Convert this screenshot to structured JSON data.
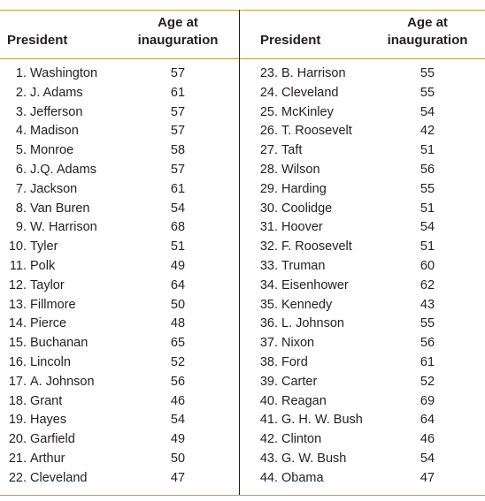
{
  "headers": {
    "president": "President",
    "age_line1": "Age at",
    "age_line2": "inauguration"
  },
  "left_rows": [
    {
      "num": "1.",
      "name": "Washington",
      "age": "57"
    },
    {
      "num": "2.",
      "name": "J. Adams",
      "age": "61"
    },
    {
      "num": "3.",
      "name": "Jefferson",
      "age": "57"
    },
    {
      "num": "4.",
      "name": "Madison",
      "age": "57"
    },
    {
      "num": "5.",
      "name": "Monroe",
      "age": "58"
    },
    {
      "num": "6.",
      "name": "J.Q. Adams",
      "age": "57"
    },
    {
      "num": "7.",
      "name": "Jackson",
      "age": "61"
    },
    {
      "num": "8.",
      "name": "Van Buren",
      "age": "54"
    },
    {
      "num": "9.",
      "name": "W. Harrison",
      "age": "68"
    },
    {
      "num": "10.",
      "name": "Tyler",
      "age": "51"
    },
    {
      "num": "11.",
      "name": "Polk",
      "age": "49"
    },
    {
      "num": "12.",
      "name": "Taylor",
      "age": "64"
    },
    {
      "num": "13.",
      "name": "Fillmore",
      "age": "50"
    },
    {
      "num": "14.",
      "name": "Pierce",
      "age": "48"
    },
    {
      "num": "15.",
      "name": "Buchanan",
      "age": "65"
    },
    {
      "num": "16.",
      "name": "Lincoln",
      "age": "52"
    },
    {
      "num": "17.",
      "name": "A. Johnson",
      "age": "56"
    },
    {
      "num": "18.",
      "name": "Grant",
      "age": "46"
    },
    {
      "num": "19.",
      "name": "Hayes",
      "age": "54"
    },
    {
      "num": "20.",
      "name": "Garfield",
      "age": "49"
    },
    {
      "num": "21.",
      "name": "Arthur",
      "age": "50"
    },
    {
      "num": "22.",
      "name": "Cleveland",
      "age": "47"
    }
  ],
  "right_rows": [
    {
      "num": "23.",
      "name": "B. Harrison",
      "age": "55"
    },
    {
      "num": "24.",
      "name": "Cleveland",
      "age": "55"
    },
    {
      "num": "25.",
      "name": "McKinley",
      "age": "54"
    },
    {
      "num": "26.",
      "name": "T. Roosevelt",
      "age": "42"
    },
    {
      "num": "27.",
      "name": "Taft",
      "age": "51"
    },
    {
      "num": "28.",
      "name": "Wilson",
      "age": "56"
    },
    {
      "num": "29.",
      "name": "Harding",
      "age": "55"
    },
    {
      "num": "30.",
      "name": "Coolidge",
      "age": "51"
    },
    {
      "num": "31.",
      "name": "Hoover",
      "age": "54"
    },
    {
      "num": "32.",
      "name": "F. Roosevelt",
      "age": "51"
    },
    {
      "num": "33.",
      "name": "Truman",
      "age": "60"
    },
    {
      "num": "34.",
      "name": "Eisenhower",
      "age": "62"
    },
    {
      "num": "35.",
      "name": "Kennedy",
      "age": "43"
    },
    {
      "num": "36.",
      "name": "L. Johnson",
      "age": "55"
    },
    {
      "num": "37.",
      "name": "Nixon",
      "age": "56"
    },
    {
      "num": "38.",
      "name": "Ford",
      "age": "61"
    },
    {
      "num": "39.",
      "name": "Carter",
      "age": "52"
    },
    {
      "num": "40.",
      "name": "Reagan",
      "age": "69"
    },
    {
      "num": "41.",
      "name": "G. H. W. Bush",
      "age": "64"
    },
    {
      "num": "42.",
      "name": "Clinton",
      "age": "46"
    },
    {
      "num": "43.",
      "name": "G. W. Bush",
      "age": "54"
    },
    {
      "num": "44.",
      "name": "Obama",
      "age": "47"
    }
  ],
  "colors": {
    "rule": "#c89a4f",
    "text": "#231f20"
  }
}
